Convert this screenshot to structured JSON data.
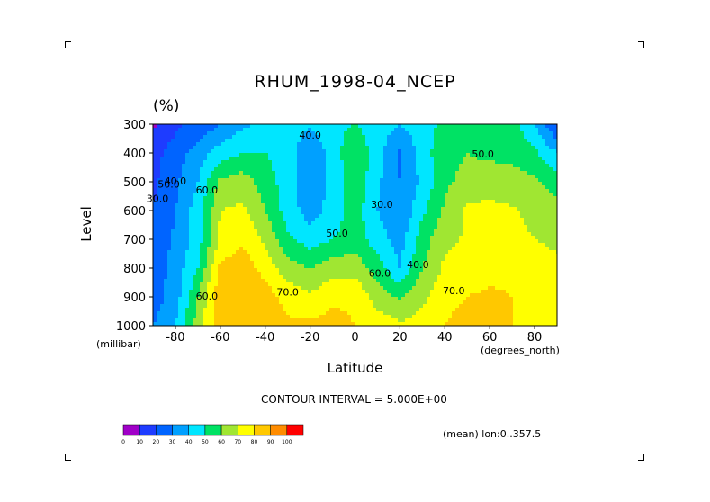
{
  "chart_data": {
    "type": "heatmap",
    "variant": "filled-contour",
    "title": "RHUM_1998-04_NCEP",
    "units": "(%)",
    "xlabel": "Latitude",
    "ylabel": "Level",
    "x_units": "(degrees_north)",
    "y_units": "(millibar)",
    "xlim": [
      -90,
      90
    ],
    "ylim": [
      1000,
      300
    ],
    "x_ticks": [
      -80,
      -60,
      -40,
      -20,
      0,
      20,
      40,
      60,
      80
    ],
    "x_tick_labels": [
      "-80",
      "-60",
      "-40",
      "-20",
      "0",
      "20",
      "40",
      "60",
      "80"
    ],
    "y_ticks": [
      300,
      400,
      500,
      600,
      700,
      800,
      900,
      1000
    ],
    "y_tick_labels": [
      "300",
      "400",
      "500",
      "600",
      "700",
      "800",
      "900",
      "1000"
    ],
    "contour_interval_text": "CONTOUR INTERVAL = 5.000E+00",
    "averaging_text": "(mean) lon:0..357.5",
    "contour_labels": [
      {
        "lat": -20,
        "p": 350,
        "text": "40.0"
      },
      {
        "lat": 57,
        "p": 415,
        "text": "50.0"
      },
      {
        "lat": -88,
        "p": 570,
        "text": "30.0"
      },
      {
        "lat": -83,
        "p": 520,
        "text": "50.0"
      },
      {
        "lat": -80,
        "p": 510,
        "text": "40.0"
      },
      {
        "lat": -66,
        "p": 540,
        "text": "60.0"
      },
      {
        "lat": 12,
        "p": 590,
        "text": "30.0"
      },
      {
        "lat": -8,
        "p": 690,
        "text": "50.0"
      },
      {
        "lat": 28,
        "p": 800,
        "text": "40.0"
      },
      {
        "lat": 11,
        "p": 830,
        "text": "60.0"
      },
      {
        "lat": -30,
        "p": 895,
        "text": "70.0"
      },
      {
        "lat": 44,
        "p": 890,
        "text": "70.0"
      },
      {
        "lat": -66,
        "p": 910,
        "text": "60.0"
      }
    ],
    "profiles_lat": [
      -90,
      -80,
      -70,
      -60,
      -50,
      -40,
      -30,
      -20,
      -10,
      0,
      10,
      20,
      30,
      40,
      50,
      60,
      70,
      80,
      90
    ],
    "profiles_p": [
      300,
      400,
      500,
      600,
      700,
      800,
      900,
      1000
    ],
    "values": [
      [
        8,
        18,
        22,
        30,
        38,
        42,
        45,
        42,
        48,
        50,
        45,
        40,
        46,
        52,
        55,
        56,
        55,
        40,
        18
      ],
      [
        16,
        25,
        35,
        45,
        50,
        50,
        45,
        30,
        45,
        58,
        45,
        28,
        45,
        57,
        60,
        58,
        57,
        52,
        40
      ],
      [
        18,
        28,
        40,
        62,
        65,
        55,
        45,
        34,
        42,
        58,
        42,
        30,
        42,
        58,
        63,
        65,
        64,
        62,
        55
      ],
      [
        20,
        30,
        45,
        70,
        72,
        60,
        45,
        35,
        44,
        55,
        40,
        30,
        48,
        62,
        72,
        73,
        71,
        68,
        64
      ],
      [
        22,
        32,
        45,
        72,
        78,
        68,
        52,
        45,
        50,
        55,
        45,
        35,
        55,
        68,
        71,
        73,
        72,
        70,
        68
      ],
      [
        24,
        34,
        50,
        82,
        86,
        76,
        64,
        60,
        65,
        66,
        55,
        40,
        60,
        72,
        74,
        76,
        78,
        76,
        72
      ],
      [
        25,
        35,
        60,
        88,
        90,
        85,
        76,
        72,
        78,
        78,
        65,
        58,
        68,
        76,
        80,
        82,
        80,
        76,
        72
      ],
      [
        30,
        40,
        65,
        86,
        88,
        86,
        82,
        82,
        84,
        80,
        76,
        72,
        74,
        80,
        86,
        85,
        80,
        76,
        74
      ]
    ],
    "colorbar": {
      "levels": [
        0,
        10,
        20,
        30,
        40,
        50,
        60,
        70,
        80,
        90,
        100
      ],
      "labels": [
        "0",
        "10",
        "20",
        "30",
        "40",
        "50",
        "60",
        "70",
        "80",
        "90",
        "100"
      ],
      "colors": [
        "#a000c8",
        "#1e3cff",
        "#0064ff",
        "#00a0ff",
        "#00e6ff",
        "#00e264",
        "#a0e632",
        "#ffff00",
        "#ffc800",
        "#ff8c00",
        "#ff0000"
      ]
    }
  }
}
